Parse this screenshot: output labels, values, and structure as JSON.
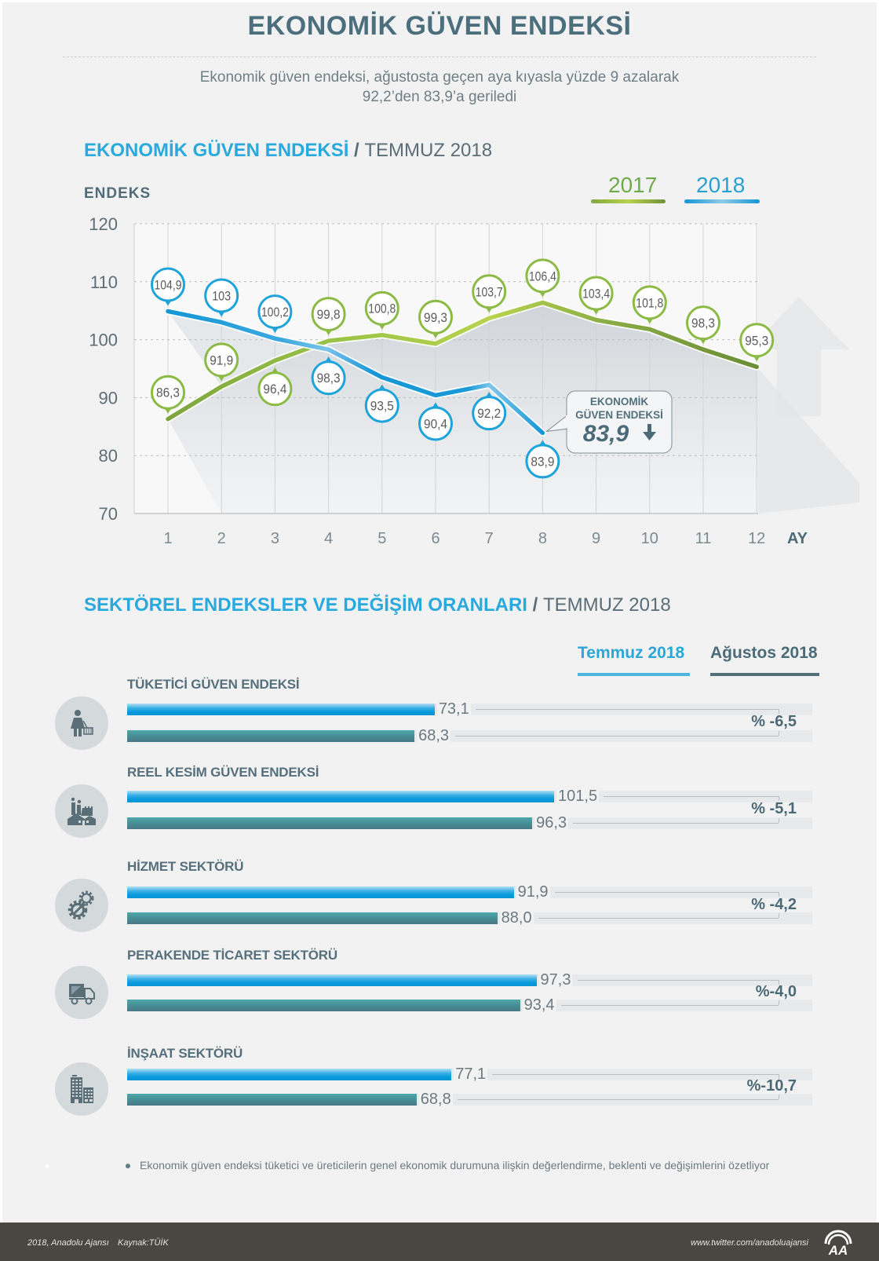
{
  "header": {
    "title": "EKONOMİK GÜVEN ENDEKSİ",
    "subtitle_line1": "Ekonomik güven endeksi, ağustosta geçen aya kıyasla yüzde 9 azalarak",
    "subtitle_line2": "92,2’den 83,9’a geriledi"
  },
  "sections": [
    {
      "title": "EKONOMİK GÜVEN ENDEKSİ",
      "separator": "/",
      "period": "TEMMUZ 2018"
    },
    {
      "title": "SEKTÖREL ENDEKSLER VE DEĞİŞİM ORANLARI",
      "separator": "/",
      "period": "TEMMUZ 2018"
    }
  ],
  "chart_data": [
    {
      "type": "line",
      "title": "EKONOMİK GÜVEN ENDEKSİ / TEMMUZ 2018",
      "ylabel": "ENDEKS",
      "xlabel": "AY",
      "categories": [
        "1",
        "2",
        "3",
        "4",
        "5",
        "6",
        "7",
        "8",
        "9",
        "10",
        "11",
        "12"
      ],
      "ylim": [
        70,
        120
      ],
      "yticks": [
        70,
        80,
        90,
        100,
        110,
        120
      ],
      "grid": true,
      "legend": "top-right",
      "series": [
        {
          "name": "2017",
          "color": "#7bb241",
          "values": [
            86.3,
            91.9,
            96.4,
            99.8,
            100.8,
            99.3,
            103.7,
            106.4,
            103.4,
            101.8,
            98.3,
            95.3
          ],
          "labels": [
            "86,3",
            "91,9",
            "96,4",
            "99,8",
            "100,8",
            "99,3",
            "103,7",
            "106,4",
            "103,4",
            "101,8",
            "98,3",
            "95,3"
          ],
          "label_positions": [
            "above",
            "above",
            "below",
            "above",
            "above",
            "above",
            "above",
            "above",
            "above",
            "above",
            "above",
            "above"
          ]
        },
        {
          "name": "2018",
          "color": "#1a9bd7",
          "values": [
            104.9,
            103,
            100.2,
            98.3,
            93.5,
            90.4,
            92.2,
            83.9
          ],
          "labels": [
            "104,9",
            "103",
            "100,2",
            "98,3",
            "93,5",
            "90,4",
            "92,2",
            "83,9"
          ],
          "label_positions": [
            "above",
            "above",
            "above",
            "below",
            "below",
            "below",
            "below",
            "below"
          ]
        }
      ],
      "annotation": {
        "series": "2018",
        "month": "8",
        "line1": "EKONOMİK",
        "line2": "GÜVEN ENDEKSİ",
        "value": "83,9",
        "icon": "down-arrow-icon"
      }
    },
    {
      "type": "bar",
      "orientation": "horizontal",
      "title": "SEKTÖREL ENDEKSLER VE DEĞİŞİM ORANLARI / TEMMUZ 2018",
      "legend": "top-right",
      "categories": [
        "TÜKETİCİ GÜVEN ENDEKSİ",
        "REEL KESİM GÜVEN ENDEKSİ",
        "HİZMET SEKTÖRÜ",
        "PERAKENDE TİCARET SEKTÖRÜ",
        "İNŞAAT SEKTÖRÜ"
      ],
      "icons": [
        "shopper-icon",
        "factory-icon",
        "gears-icon",
        "delivery-truck-icon",
        "buildings-icon"
      ],
      "series": [
        {
          "name": "Temmuz 2018",
          "color": "#1aa3df",
          "values": [
            73.1,
            101.5,
            91.9,
            97.3,
            77.1
          ],
          "labels": [
            "73,1",
            "101,5",
            "91,9",
            "97,3",
            "77,1"
          ]
        },
        {
          "name": "Ağustos 2018",
          "color": "#4a8a90",
          "values": [
            68.3,
            96.3,
            88.0,
            93.4,
            68.8
          ],
          "labels": [
            "68,3",
            "96,3",
            "88,0",
            "93,4",
            "68,8"
          ]
        }
      ],
      "change_labels": [
        "% -6,5",
        "% -5,1",
        "% -4,2",
        "%-4,0",
        "%-10,7"
      ],
      "change_values": [
        -6.5,
        -5.1,
        -4.2,
        -4.0,
        -10.7
      ]
    }
  ],
  "footnote": "Ekonomik güven endeksi tüketici ve üreticilerin genel ekonomik durumuna ilişkin değerlendirme, beklenti ve değişimlerini özetliyor",
  "footer": {
    "copyright": "2018, Anadolu Ajansı",
    "source": "Kaynak:TÜİK",
    "twitter": "www.twitter.com/anadoluajansi",
    "logo": "AA"
  }
}
